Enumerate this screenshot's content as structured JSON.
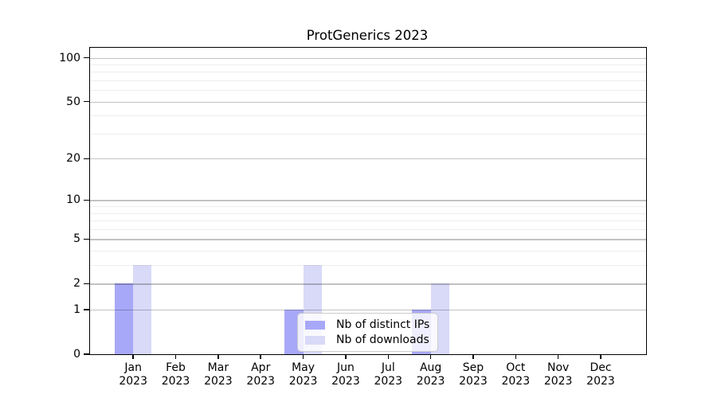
{
  "chart_data": {
    "type": "bar",
    "title": "ProtGenerics 2023",
    "xlabel": "",
    "ylabel": "",
    "categories": [
      "Jan",
      "Feb",
      "Mar",
      "Apr",
      "May",
      "Jun",
      "Jul",
      "Aug",
      "Sep",
      "Oct",
      "Nov",
      "Dec"
    ],
    "x_year_label": "2023",
    "series": [
      {
        "name": "Nb of distinct IPs",
        "color": "#a8a8f8",
        "values": [
          2,
          0,
          0,
          0,
          1,
          0,
          0,
          1,
          0,
          0,
          0,
          0
        ]
      },
      {
        "name": "Nb of downloads",
        "color": "#d9d9f8",
        "values": [
          3,
          0,
          0,
          0,
          3,
          0,
          0,
          2,
          0,
          0,
          0,
          0
        ]
      }
    ],
    "y_axis": {
      "scale": "log10(1+value)",
      "major_ticks": [
        0,
        1,
        2,
        5,
        10,
        20,
        50,
        100
      ],
      "minor_ticks": [
        3,
        4,
        6,
        7,
        8,
        9,
        30,
        40,
        60,
        70,
        80,
        90
      ],
      "ylim": [
        0,
        117
      ]
    },
    "grid": "on",
    "legend": {
      "position": "inside-bottom-center",
      "entries": [
        "Nb of distinct IPs",
        "Nb of downloads"
      ]
    },
    "axis_color": "#000000",
    "major_grid_color": "#c2c2c2",
    "minor_grid_color": "#ededed",
    "legend_border_color": "#cccccc"
  }
}
